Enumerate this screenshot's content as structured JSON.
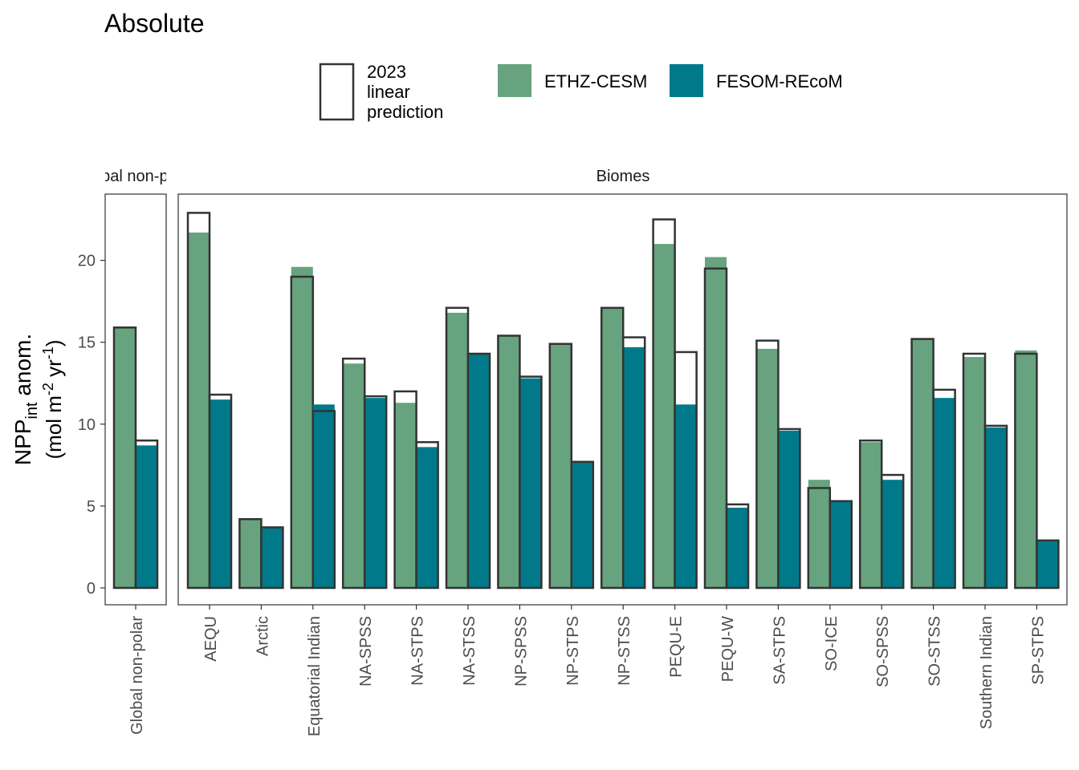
{
  "chart_data": {
    "type": "bar",
    "title": "Absolute",
    "ylabel": {
      "line1_main": "NPP",
      "line1_sub": "int",
      "line1_rest": " anom.",
      "line2": "(mol m-2 yr-1)",
      "line2_a": "(mol m",
      "line2_sup1": "-2",
      "line2_b": " yr",
      "line2_sup2": "-1",
      "line2_c": ")"
    },
    "ylim": [
      -1,
      23.9
    ],
    "yticks": [
      0,
      5,
      10,
      15,
      20
    ],
    "grid": false,
    "legend": {
      "placement": "top",
      "outline_label": "2023\nlinear\nprediction",
      "outline_label_lines": [
        "2023",
        "linear",
        "prediction"
      ],
      "series_colors": {
        "ETHZ-CESM": "#66a37e",
        "FESOM-REcoM": "#007a8a"
      }
    },
    "colors": {
      "ETHZ-CESM": "#66a37e",
      "FESOM-REcoM": "#007a8a",
      "outline": "#333333",
      "axis": "#333333"
    },
    "series": [
      {
        "name": "ETHZ-CESM"
      },
      {
        "name": "FESOM-REcoM"
      }
    ],
    "facets": [
      {
        "strip": "Global non-polar",
        "strip_visible": "al non-p",
        "categories": [
          "Global non-polar"
        ],
        "observed": {
          "ETHZ-CESM": [
            15.9
          ],
          "FESOM-REcoM": [
            8.7
          ]
        },
        "prediction": {
          "ETHZ-CESM": [
            15.9
          ],
          "FESOM-REcoM": [
            9.0
          ]
        }
      },
      {
        "strip": "Biomes",
        "strip_visible": "Biomes",
        "categories": [
          "AEQU",
          "Arctic",
          "Equatorial Indian",
          "NA-SPSS",
          "NA-STPS",
          "NA-STSS",
          "NP-SPSS",
          "NP-STPS",
          "NP-STSS",
          "PEQU-E",
          "PEQU-W",
          "SA-STPS",
          "SO-ICE",
          "SO-SPSS",
          "SO-STSS",
          "Southern Indian",
          "SP-STPS"
        ],
        "observed": {
          "ETHZ-CESM": [
            21.7,
            4.2,
            19.6,
            13.7,
            11.3,
            16.8,
            15.4,
            14.9,
            17.1,
            21.0,
            20.2,
            14.6,
            6.6,
            8.9,
            15.2,
            14.1,
            14.5
          ],
          "FESOM-REcoM": [
            11.5,
            3.7,
            11.2,
            11.6,
            8.6,
            14.3,
            12.8,
            7.7,
            14.7,
            11.2,
            4.9,
            9.6,
            5.3,
            6.6,
            11.6,
            9.8,
            2.9
          ]
        },
        "prediction": {
          "ETHZ-CESM": [
            22.9,
            4.2,
            19.0,
            14.0,
            12.0,
            17.1,
            15.4,
            14.9,
            17.1,
            22.5,
            19.5,
            15.1,
            6.1,
            9.0,
            15.2,
            14.3,
            14.3
          ],
          "FESOM-REcoM": [
            11.8,
            3.7,
            10.8,
            11.7,
            8.9,
            14.3,
            12.9,
            7.7,
            15.3,
            14.4,
            5.1,
            9.7,
            5.3,
            6.9,
            12.1,
            9.9,
            2.9
          ]
        }
      }
    ]
  }
}
